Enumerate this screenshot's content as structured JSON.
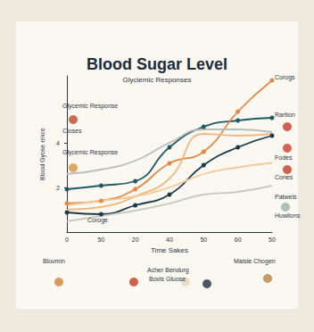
{
  "chart_data": {
    "type": "line",
    "title": "Blood Sugar Level",
    "subtitle": "Glyciemic Responses",
    "x_label": "Time Sakes",
    "y_label": "Blood Gyose eince",
    "categories": [
      "0",
      "50",
      "20",
      "40",
      "50",
      "60",
      "50"
    ],
    "ylim": [
      0,
      7
    ],
    "yticks": [
      2,
      4
    ],
    "grid": false,
    "series": [
      {
        "color": "#1f5a63",
        "marker": "circle",
        "line_style": "solid",
        "values": [
          1.92,
          2.08,
          2.28,
          3.8,
          4.72,
          5.0,
          5.12
        ]
      },
      {
        "color": "#1c3a4a",
        "marker": "circle",
        "line_style": "solid",
        "values": [
          0.88,
          0.8,
          1.2,
          1.68,
          3.0,
          3.8,
          4.32
        ]
      },
      {
        "color": "#e08a45",
        "marker": "circle",
        "line_style": "solid",
        "values": [
          1.28,
          1.4,
          1.92,
          3.08,
          3.6,
          5.4,
          6.8
        ]
      },
      {
        "color": "#f2b880",
        "marker": "none",
        "line_style": "solid",
        "values": [
          1.0,
          1.12,
          1.6,
          2.4,
          4.4,
          4.32,
          4.4
        ]
      },
      {
        "color": "#b9bdb8",
        "marker": "none",
        "line_style": "solid",
        "values": [
          2.6,
          2.8,
          3.2,
          4.0,
          4.6,
          4.6,
          4.48
        ]
      },
      {
        "color": "#c9c9c2",
        "marker": "none",
        "line_style": "solid",
        "values": [
          0.48,
          0.72,
          0.96,
          1.28,
          1.68,
          1.8,
          2.08
        ]
      },
      {
        "color": "#f5c99b",
        "marker": "none",
        "line_style": "solid",
        "values": [
          1.2,
          1.4,
          1.6,
          2.0,
          2.6,
          2.9,
          3.1
        ]
      }
    ],
    "annotations": [
      "Glycemic Response",
      "Closes",
      "Glycemic Response",
      "Corogs",
      "Rartion",
      "Fodes",
      "Cones",
      "Patwels",
      "Huwlions",
      "Coroge",
      "Bluvmin",
      "Acher Bendurg",
      "Bovls Gluose",
      "Maisle Chogen"
    ]
  }
}
